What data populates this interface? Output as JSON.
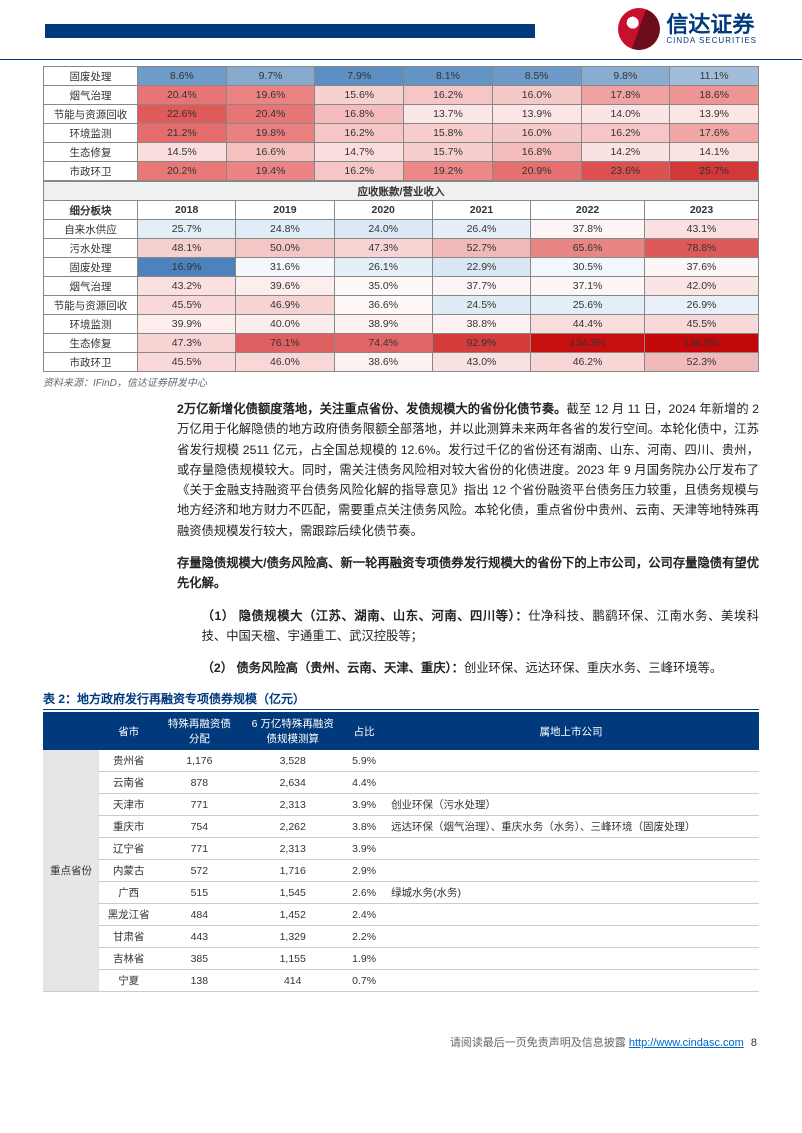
{
  "logo": {
    "cn": "信达证券",
    "en": "CINDA SECURITIES"
  },
  "heatmap1": {
    "rows": [
      {
        "label": "固废处理",
        "cells": [
          {
            "v": "8.6%",
            "c": "#6f9cc9"
          },
          {
            "v": "9.7%",
            "c": "#86abce"
          },
          {
            "v": "7.9%",
            "c": "#5c8fc4"
          },
          {
            "v": "8.1%",
            "c": "#6294c6"
          },
          {
            "v": "8.5%",
            "c": "#6d9ac8"
          },
          {
            "v": "9.8%",
            "c": "#89add0"
          },
          {
            "v": "11.1%",
            "c": "#a2bdd9"
          }
        ]
      },
      {
        "label": "烟气治理",
        "cells": [
          {
            "v": "20.4%",
            "c": "#e87575"
          },
          {
            "v": "19.6%",
            "c": "#eb8383"
          },
          {
            "v": "15.6%",
            "c": "#f7d0d0"
          },
          {
            "v": "16.2%",
            "c": "#f6c6c6"
          },
          {
            "v": "16.0%",
            "c": "#f6c9c9"
          },
          {
            "v": "17.8%",
            "c": "#f0a2a2"
          },
          {
            "v": "18.6%",
            "c": "#ee9494"
          }
        ]
      },
      {
        "label": "节能与资源回收",
        "cells": [
          {
            "v": "22.6%",
            "c": "#e05a5a"
          },
          {
            "v": "20.4%",
            "c": "#e87575"
          },
          {
            "v": "16.8%",
            "c": "#f4bcbc"
          },
          {
            "v": "13.7%",
            "c": "#fbe7e7"
          },
          {
            "v": "13.9%",
            "c": "#fbe5e5"
          },
          {
            "v": "14.0%",
            "c": "#fbe4e4"
          },
          {
            "v": "13.9%",
            "c": "#fbe5e5"
          }
        ]
      },
      {
        "label": "环境监测",
        "cells": [
          {
            "v": "21.2%",
            "c": "#e56c6c"
          },
          {
            "v": "19.8%",
            "c": "#ea8080"
          },
          {
            "v": "16.2%",
            "c": "#f6c6c6"
          },
          {
            "v": "15.8%",
            "c": "#f7cccc"
          },
          {
            "v": "16.0%",
            "c": "#f6c9c9"
          },
          {
            "v": "16.2%",
            "c": "#f6c6c6"
          },
          {
            "v": "17.6%",
            "c": "#f1a6a6"
          }
        ]
      },
      {
        "label": "生态修复",
        "cells": [
          {
            "v": "14.5%",
            "c": "#fadede"
          },
          {
            "v": "16.6%",
            "c": "#f5c0c0"
          },
          {
            "v": "14.7%",
            "c": "#fadddd"
          },
          {
            "v": "15.7%",
            "c": "#f7cece"
          },
          {
            "v": "16.8%",
            "c": "#f4bcbc"
          },
          {
            "v": "14.2%",
            "c": "#fbe2e2"
          },
          {
            "v": "14.1%",
            "c": "#fbe3e3"
          }
        ]
      },
      {
        "label": "市政环卫",
        "cells": [
          {
            "v": "20.2%",
            "c": "#e87878"
          },
          {
            "v": "19.4%",
            "c": "#eb8585"
          },
          {
            "v": "16.2%",
            "c": "#f6c6c6"
          },
          {
            "v": "19.2%",
            "c": "#ec8888"
          },
          {
            "v": "20.9%",
            "c": "#e67070"
          },
          {
            "v": "23.6%",
            "c": "#dc5050"
          },
          {
            "v": "25.7%",
            "c": "#d23838"
          }
        ]
      }
    ]
  },
  "heatmap2": {
    "band_title": "应收账款/营业收入",
    "header_label": "细分板块",
    "years": [
      "2018",
      "2019",
      "2020",
      "2021",
      "2022",
      "2023"
    ],
    "rows": [
      {
        "label": "自来水供应",
        "cells": [
          {
            "v": "25.7%",
            "c": "#e4eef7"
          },
          {
            "v": "24.8%",
            "c": "#e0ecf6"
          },
          {
            "v": "24.0%",
            "c": "#ddeaf5"
          },
          {
            "v": "26.4%",
            "c": "#e6eff8"
          },
          {
            "v": "37.8%",
            "c": "#fdf5f5"
          },
          {
            "v": "43.1%",
            "c": "#fae0e0"
          }
        ]
      },
      {
        "label": "污水处理",
        "cells": [
          {
            "v": "48.1%",
            "c": "#f6cfcf"
          },
          {
            "v": "50.0%",
            "c": "#f4c6c6"
          },
          {
            "v": "47.3%",
            "c": "#f7d3d3"
          },
          {
            "v": "52.7%",
            "c": "#f1b9b9"
          },
          {
            "v": "65.6%",
            "c": "#e88686"
          },
          {
            "v": "78.8%",
            "c": "#de5a5a"
          }
        ]
      },
      {
        "label": "固废处理",
        "cells": [
          {
            "v": "16.9%",
            "c": "#4d82bd"
          },
          {
            "v": "31.6%",
            "c": "#f4f8fc"
          },
          {
            "v": "26.1%",
            "c": "#e5eff7"
          },
          {
            "v": "22.9%",
            "c": "#d9e7f3"
          },
          {
            "v": "30.5%",
            "c": "#f2f7fb"
          },
          {
            "v": "37.6%",
            "c": "#fdf6f6"
          }
        ]
      },
      {
        "label": "烟气治理",
        "cells": [
          {
            "v": "43.2%",
            "c": "#fae0e0"
          },
          {
            "v": "39.6%",
            "c": "#fdeeee"
          },
          {
            "v": "35.0%",
            "c": "#fef9f9"
          },
          {
            "v": "37.7%",
            "c": "#fdf5f5"
          },
          {
            "v": "37.1%",
            "c": "#fdf6f6"
          },
          {
            "v": "42.0%",
            "c": "#fbe4e4"
          }
        ]
      },
      {
        "label": "节能与资源回收",
        "cells": [
          {
            "v": "45.5%",
            "c": "#f8d8d8"
          },
          {
            "v": "46.9%",
            "c": "#f7d4d4"
          },
          {
            "v": "36.6%",
            "c": "#fef8f8"
          },
          {
            "v": "24.5%",
            "c": "#dfebf5"
          },
          {
            "v": "25.6%",
            "c": "#e3eef7"
          },
          {
            "v": "26.9%",
            "c": "#e8f0f8"
          }
        ]
      },
      {
        "label": "环境监测",
        "cells": [
          {
            "v": "39.9%",
            "c": "#fdeded"
          },
          {
            "v": "40.0%",
            "c": "#fdecec"
          },
          {
            "v": "38.9%",
            "c": "#fdf1f1"
          },
          {
            "v": "38.8%",
            "c": "#fdf1f1"
          },
          {
            "v": "44.4%",
            "c": "#f9dcdc"
          },
          {
            "v": "45.5%",
            "c": "#f8d8d8"
          }
        ]
      },
      {
        "label": "生态修复",
        "cells": [
          {
            "v": "47.3%",
            "c": "#f7d3d3"
          },
          {
            "v": "76.1%",
            "c": "#df6060"
          },
          {
            "v": "74.4%",
            "c": "#e06666"
          },
          {
            "v": "92.9%",
            "c": "#d43c3c"
          },
          {
            "v": "134.3%",
            "c": "#c61010"
          },
          {
            "v": "136.6%",
            "c": "#c20808"
          }
        ]
      },
      {
        "label": "市政环卫",
        "cells": [
          {
            "v": "45.5%",
            "c": "#f8d8d8"
          },
          {
            "v": "46.0%",
            "c": "#f8d7d7"
          },
          {
            "v": "38.6%",
            "c": "#fdf2f2"
          },
          {
            "v": "43.0%",
            "c": "#fae1e1"
          },
          {
            "v": "46.2%",
            "c": "#f8d6d6"
          },
          {
            "v": "52.3%",
            "c": "#f1baba"
          }
        ]
      }
    ]
  },
  "source_note": "资料来源：IFinD，信达证券研发中心",
  "para1": {
    "bold": "2万亿新增化债额度落地，关注重点省份、发债规模大的省份化债节奏。",
    "body": "截至 12 月 11 日，2024 年新增的 2 万亿用于化解隐债的地方政府债务限额全部落地，并以此测算未来两年各省的发行空间。本轮化债中，江苏省发行规模 2511 亿元，占全国总规模的 12.6%。发行过千亿的省份还有湖南、山东、河南、四川、贵州，或存量隐债规模较大。同时，需关注债务风险相对较大省份的化债进度。2023 年 9 月国务院办公厅发布了《关于金融支持融资平台债务风险化解的指导意见》指出 12 个省份融资平台债务压力较重，且债务规模与地方经济和地方财力不匹配，需要重点关注债务风险。本轮化债，重点省份中贵州、云南、天津等地特殊再融资债规模发行较大，需跟踪后续化债节奏。"
  },
  "para2": "存量隐债规模大/债务风险高、新一轮再融资专项债券发行规模大的省份下的上市公司，公司存量隐债有望优先化解。",
  "item1": {
    "num": "（1）",
    "title": "隐债规模大（江苏、湖南、山东、河南、四川等）：",
    "body": "仕净科技、鹏鹞环保、江南水务、美埃科技、中国天楹、宇通重工、武汉控股等；"
  },
  "item2": {
    "num": "（2）",
    "title": "债务风险高（贵州、云南、天津、重庆）：",
    "body": "创业环保、远达环保、重庆水务、三峰环境等。"
  },
  "table2": {
    "caption": "表 2：地方政府发行再融资专项债券规模（亿元）",
    "headers": [
      "省市",
      "特殊再融资债\n分配",
      "6 万亿特殊再融资\n债规模测算",
      "占比",
      "属地上市公司"
    ],
    "group_label": "重点省份",
    "rows": [
      {
        "p": "贵州省",
        "a": "1,176",
        "b": "3,528",
        "c": "5.9%",
        "d": ""
      },
      {
        "p": "云南省",
        "a": "878",
        "b": "2,634",
        "c": "4.4%",
        "d": ""
      },
      {
        "p": "天津市",
        "a": "771",
        "b": "2,313",
        "c": "3.9%",
        "d": "创业环保（污水处理）"
      },
      {
        "p": "重庆市",
        "a": "754",
        "b": "2,262",
        "c": "3.8%",
        "d": "远达环保（烟气治理）、重庆水务（水务）、三峰环境（固废处理）"
      },
      {
        "p": "辽宁省",
        "a": "771",
        "b": "2,313",
        "c": "3.9%",
        "d": ""
      },
      {
        "p": "内蒙古",
        "a": "572",
        "b": "1,716",
        "c": "2.9%",
        "d": ""
      },
      {
        "p": "广西",
        "a": "515",
        "b": "1,545",
        "c": "2.6%",
        "d": "绿城水务(水务)"
      },
      {
        "p": "黑龙江省",
        "a": "484",
        "b": "1,452",
        "c": "2.4%",
        "d": ""
      },
      {
        "p": "甘肃省",
        "a": "443",
        "b": "1,329",
        "c": "2.2%",
        "d": ""
      },
      {
        "p": "吉林省",
        "a": "385",
        "b": "1,155",
        "c": "1.9%",
        "d": ""
      },
      {
        "p": "宁夏",
        "a": "138",
        "b": "414",
        "c": "0.7%",
        "d": ""
      }
    ]
  },
  "footer": {
    "text": "请阅读最后一页免责声明及信息披露",
    "url_label": "http://www.cindasc.com",
    "page": "8"
  }
}
